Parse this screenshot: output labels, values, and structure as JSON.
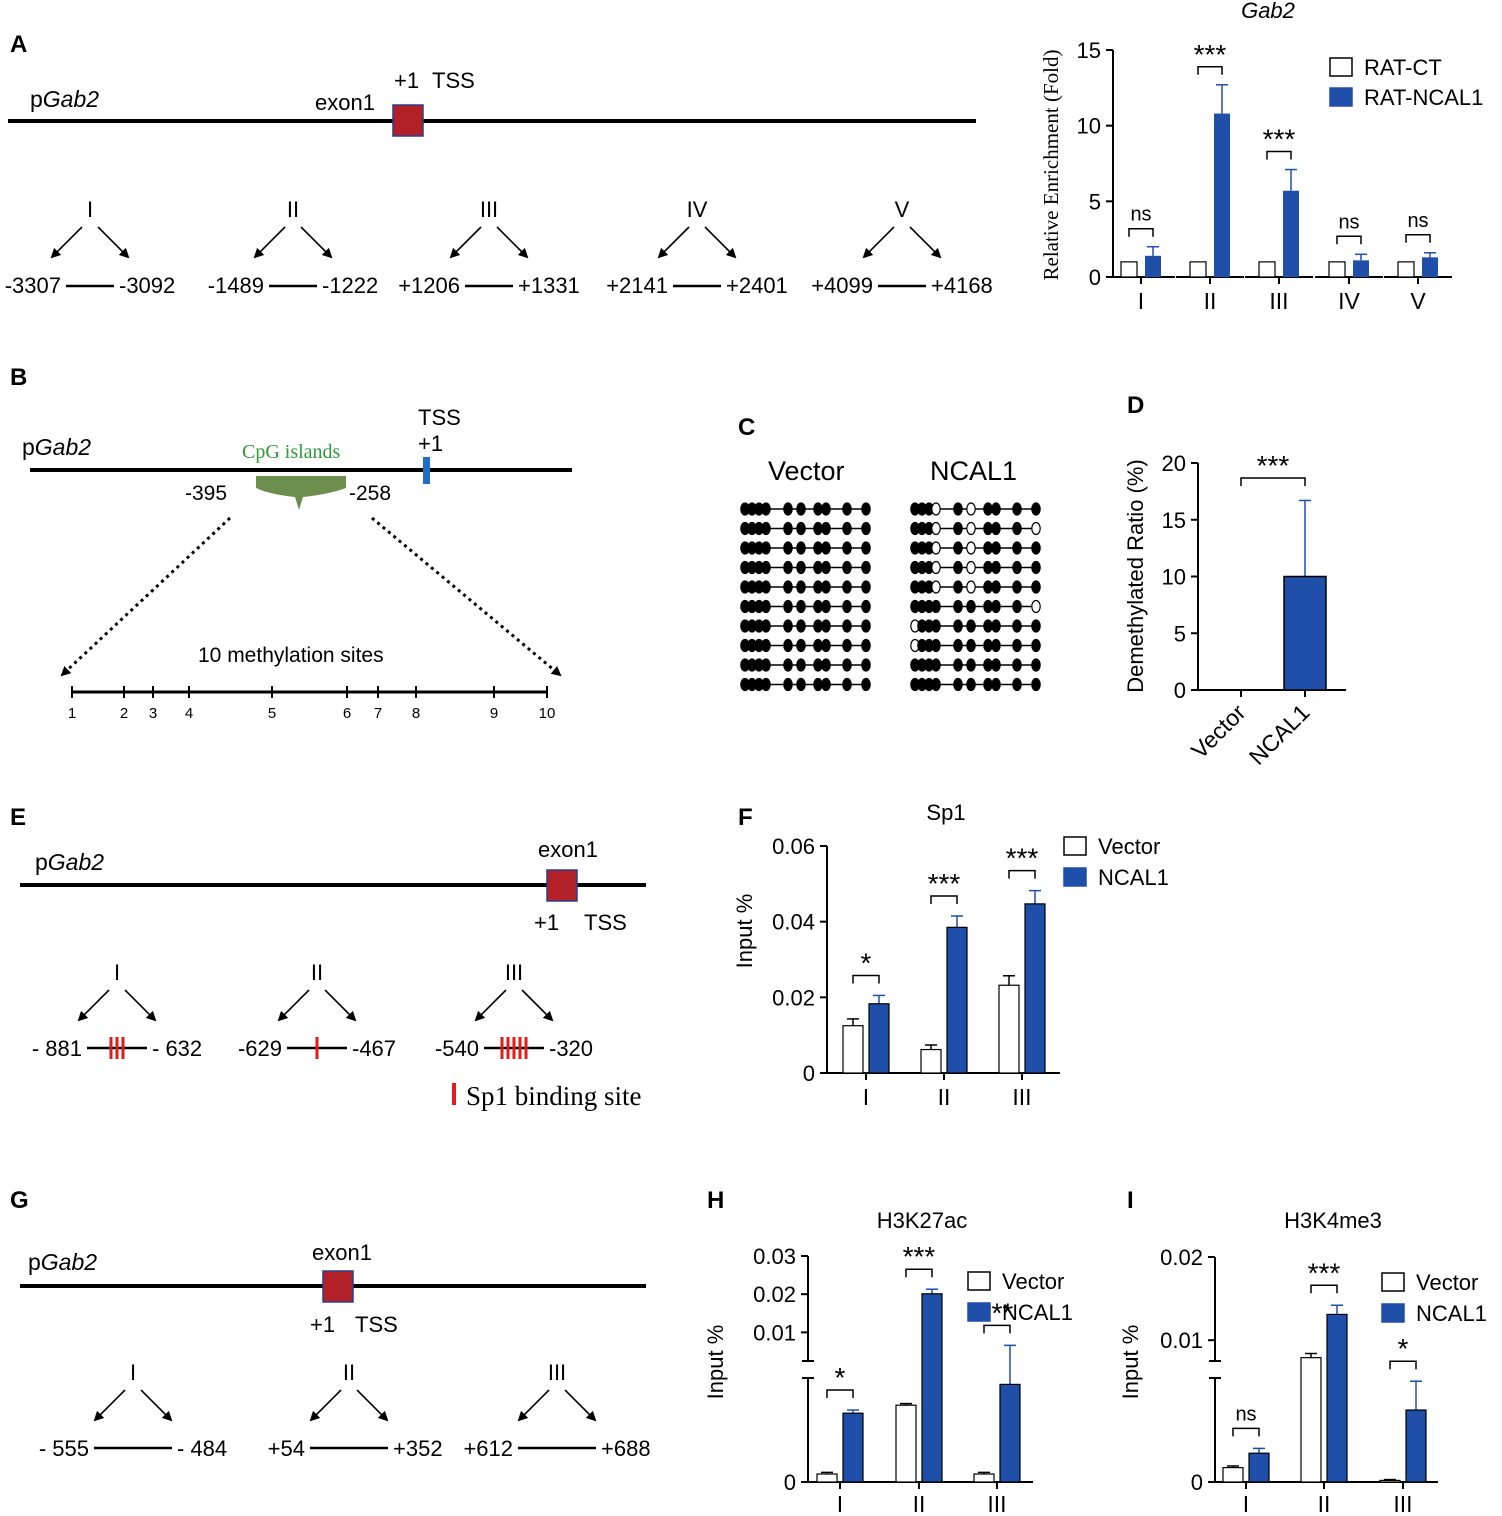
{
  "colors": {
    "blue": "#1f4fa8",
    "red": "#b22028",
    "green": "#6b8e4e",
    "green_text": "#2e9a3c",
    "sp1_red": "#e21a1a",
    "tss_blue": "#1f6fc0"
  },
  "panel_labels": [
    "A",
    "B",
    "C",
    "D",
    "E",
    "F",
    "G",
    "H",
    "I"
  ],
  "panelA": {
    "gene": "pGab2",
    "gene_prefix": "p",
    "gene_italic": "Gab2",
    "exon": "exon1",
    "plus1": "+1",
    "tss": "TSS",
    "regions": [
      {
        "label": "I",
        "start": "-3307",
        "end": "-3092"
      },
      {
        "label": "II",
        "start": "-1489",
        "end": "-1222"
      },
      {
        "label": "III",
        "start": "+1206",
        "end": "+1331"
      },
      {
        "label": "IV",
        "start": "+2141",
        "end": "+2401"
      },
      {
        "label": "V",
        "start": "+4099",
        "end": "+4168"
      }
    ]
  },
  "panelB": {
    "gene_prefix": "p",
    "gene_italic": "Gab2",
    "cpg": "CpG islands",
    "tss": "TSS",
    "plus1": "+1",
    "left": "-395",
    "right": "-258",
    "sites_label": "10 methylation sites",
    "site_numbers": [
      "1",
      "2",
      "3",
      "4",
      "5",
      "6",
      "7",
      "8",
      "9",
      "10"
    ]
  },
  "panelC": {
    "headers": [
      "Vector",
      "NCAL1"
    ],
    "rows": 10,
    "vector_pattern": [
      [
        1,
        1,
        1,
        1,
        1,
        1,
        1,
        1,
        1,
        1
      ],
      [
        1,
        1,
        1,
        1,
        1,
        1,
        1,
        1,
        1,
        1
      ],
      [
        1,
        1,
        1,
        1,
        1,
        1,
        1,
        1,
        1,
        1
      ],
      [
        1,
        1,
        1,
        1,
        1,
        1,
        1,
        1,
        1,
        1
      ],
      [
        1,
        1,
        1,
        1,
        1,
        1,
        1,
        1,
        1,
        1
      ],
      [
        1,
        1,
        1,
        1,
        1,
        1,
        1,
        1,
        1,
        1
      ],
      [
        1,
        1,
        1,
        1,
        1,
        1,
        1,
        1,
        1,
        1
      ],
      [
        1,
        1,
        1,
        1,
        1,
        1,
        1,
        1,
        1,
        1
      ],
      [
        1,
        1,
        1,
        1,
        1,
        1,
        1,
        1,
        1,
        1
      ],
      [
        1,
        1,
        1,
        1,
        1,
        1,
        1,
        1,
        1,
        1
      ]
    ],
    "ncal1_pattern": [
      [
        1,
        1,
        1,
        0,
        1,
        0,
        1,
        1,
        1,
        1
      ],
      [
        1,
        1,
        1,
        0,
        1,
        0,
        1,
        1,
        1,
        0
      ],
      [
        1,
        1,
        1,
        0,
        1,
        0,
        1,
        1,
        1,
        1
      ],
      [
        1,
        1,
        1,
        0,
        1,
        0,
        1,
        1,
        1,
        1
      ],
      [
        1,
        1,
        1,
        0,
        1,
        0,
        1,
        1,
        1,
        1
      ],
      [
        1,
        1,
        1,
        1,
        1,
        1,
        1,
        1,
        1,
        0
      ],
      [
        0,
        1,
        1,
        1,
        1,
        1,
        1,
        1,
        1,
        1
      ],
      [
        0,
        1,
        1,
        1,
        1,
        1,
        1,
        1,
        1,
        1
      ],
      [
        1,
        1,
        1,
        1,
        1,
        1,
        1,
        1,
        1,
        1
      ],
      [
        1,
        1,
        1,
        1,
        1,
        1,
        1,
        1,
        1,
        1
      ]
    ]
  },
  "panelE": {
    "gene_prefix": "p",
    "gene_italic": "Gab2",
    "exon": "exon1",
    "plus1": "+1",
    "tss": "TSS",
    "regions": [
      {
        "label": "I",
        "start": "- 881",
        "end": "- 632",
        "sites": 3
      },
      {
        "label": "II",
        "start": "-629",
        "end": "-467",
        "sites": 1
      },
      {
        "label": "III",
        "start": "-540",
        "end": "-320",
        "sites": 5
      }
    ],
    "legend": "Sp1 binding site"
  },
  "panelG": {
    "gene_prefix": "p",
    "gene_italic": "Gab2",
    "exon": "exon1",
    "plus1": "+1",
    "tss": "TSS",
    "regions": [
      {
        "label": "I",
        "start": "- 555",
        "end": "- 484"
      },
      {
        "label": "II",
        "start": "+54",
        "end": "+352"
      },
      {
        "label": "III",
        "start": "+612",
        "end": "+688"
      }
    ]
  },
  "chart_data": [
    {
      "id": "A",
      "type": "bar",
      "title": "Gab2",
      "ylabel": "Relative Enrichment (Fold)",
      "xlabel": "",
      "categories": [
        "I",
        "II",
        "III",
        "IV",
        "V"
      ],
      "series": [
        {
          "name": "RAT-CT",
          "values": [
            1,
            1,
            1,
            1,
            1
          ],
          "errors": [
            0,
            0,
            0,
            0,
            0
          ]
        },
        {
          "name": "RAT-NCAL1",
          "values": [
            1.4,
            10.8,
            5.7,
            1.1,
            1.3
          ],
          "errors": [
            0.6,
            1.9,
            1.4,
            0.4,
            0.3
          ]
        }
      ],
      "ylim": [
        0,
        15
      ],
      "yticks": [
        "0",
        "5",
        "10",
        "15"
      ],
      "significance": [
        "ns",
        "***",
        "***",
        "ns",
        "ns"
      ],
      "legend": "top-right"
    },
    {
      "id": "D",
      "type": "bar",
      "title": "",
      "ylabel": "Demethylated Ratio (%)",
      "xlabel": "",
      "categories": [
        "Vector",
        "NCAL1"
      ],
      "values": [
        0,
        10
      ],
      "errors": [
        0,
        6.7
      ],
      "ylim": [
        0,
        20
      ],
      "yticks": [
        "0",
        "5",
        "10",
        "15",
        "20"
      ],
      "significance": [
        "***"
      ]
    },
    {
      "id": "F",
      "type": "bar",
      "title": "Sp1",
      "ylabel": "Input %",
      "xlabel": "",
      "categories": [
        "I",
        "II",
        "III"
      ],
      "series": [
        {
          "name": "Vector",
          "values": [
            0.0125,
            0.0062,
            0.0232
          ],
          "errors": [
            0.0018,
            0.0012,
            0.0025
          ]
        },
        {
          "name": "NCAL1",
          "values": [
            0.0183,
            0.0385,
            0.0447
          ],
          "errors": [
            0.0022,
            0.003,
            0.0035
          ]
        }
      ],
      "ylim": [
        0,
        0.06
      ],
      "yticks": [
        "0",
        "0.02",
        "0.04",
        "0.06"
      ],
      "significance": [
        "*",
        "***",
        "***"
      ],
      "legend": "top-right"
    },
    {
      "id": "H",
      "type": "bar",
      "title": "H3K27ac",
      "ylabel": "Input %",
      "xlabel": "",
      "categories": [
        "I",
        "II",
        "III"
      ],
      "series": [
        {
          "name": "Vector",
          "values": [
            0.0005,
            0.0048,
            0.0005
          ],
          "errors": [
            0.0001,
            0.0001,
            0.0001
          ]
        },
        {
          "name": "NCAL1",
          "values": [
            0.0043,
            0.0201,
            0.0061
          ],
          "errors": [
            0.0002,
            0.0012,
            0.0005
          ]
        }
      ],
      "broken_axis": true,
      "upper_ticks": [
        "0.01",
        "0.02",
        "0.03"
      ],
      "zero_tick": "0",
      "significance": [
        "*",
        "***",
        "***"
      ],
      "legend": "top-right"
    },
    {
      "id": "I",
      "type": "bar",
      "title": "H3K4me3",
      "ylabel": "Input %",
      "xlabel": "",
      "categories": [
        "I",
        "II",
        "III"
      ],
      "series": [
        {
          "name": "Vector",
          "values": [
            0.0009,
            0.0079,
            0.0001
          ],
          "errors": [
            0.0001,
            0.0005,
            5e-05
          ]
        },
        {
          "name": "NCAL1",
          "values": [
            0.0018,
            0.0131,
            0.0045
          ],
          "errors": [
            0.0003,
            0.0011,
            0.0018
          ]
        }
      ],
      "broken_axis": true,
      "upper_ticks": [
        "0.01",
        "0.02"
      ],
      "zero_tick": "0",
      "significance": [
        "ns",
        "***",
        "*"
      ],
      "legend": "top-right"
    }
  ]
}
